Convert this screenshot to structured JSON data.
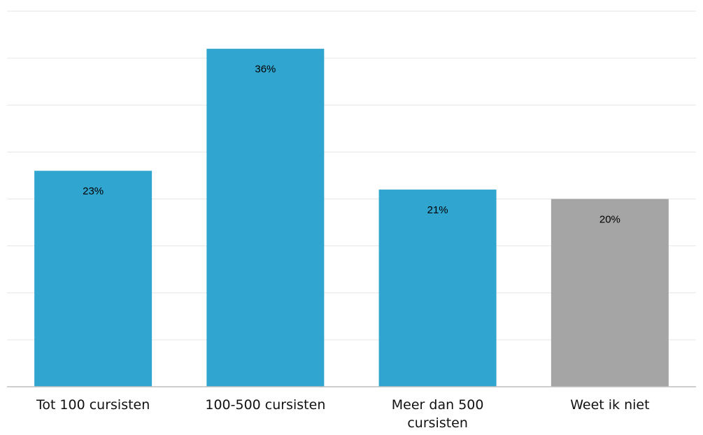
{
  "chart_data": {
    "type": "bar",
    "categories": [
      "Tot 100 cursisten",
      "100-500 cursisten",
      "Meer dan 500 cursisten",
      "Weet ik niet"
    ],
    "category_lines": [
      [
        "Tot 100 cursisten"
      ],
      [
        "100-500 cursisten"
      ],
      [
        "Meer dan 500",
        "cursisten"
      ],
      [
        "Weet ik niet"
      ]
    ],
    "values": [
      23,
      36,
      21,
      20
    ],
    "value_labels": [
      "23%",
      "36%",
      "21%",
      "20%"
    ],
    "unit": "%",
    "colors": [
      "#30A5CF",
      "#30A5CF",
      "#30A5CF",
      "#A5A5A5"
    ],
    "ylim": [
      0,
      40
    ],
    "grid": true,
    "title": "",
    "xlabel": "",
    "ylabel": ""
  }
}
